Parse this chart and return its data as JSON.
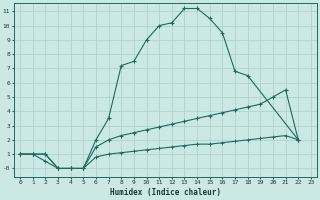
{
  "xlabel": "Humidex (Indice chaleur)",
  "ylabel": "",
  "bg_color": "#cce8e5",
  "grid_color": "#aacfcc",
  "line_color": "#1a6b60",
  "xlim": [
    -0.5,
    23.5
  ],
  "ylim": [
    -0.6,
    11.6
  ],
  "xticks": [
    0,
    1,
    2,
    3,
    4,
    5,
    6,
    7,
    8,
    9,
    10,
    11,
    12,
    13,
    14,
    15,
    16,
    17,
    18,
    19,
    20,
    21,
    22,
    23
  ],
  "yticks": [
    0,
    1,
    2,
    3,
    4,
    5,
    6,
    7,
    8,
    9,
    10,
    11
  ],
  "ytick_labels": [
    "-0",
    "1",
    "2",
    "3",
    "4",
    "5",
    "6",
    "7",
    "8",
    "9",
    "10",
    "11"
  ],
  "curve1_x": [
    0,
    1,
    2,
    3,
    4,
    5,
    6,
    7,
    8,
    9,
    10,
    11,
    12,
    13,
    14,
    15,
    16,
    17,
    18,
    22
  ],
  "curve1_y": [
    1,
    1,
    1,
    0,
    0,
    0,
    2,
    3.5,
    7.2,
    7.5,
    9.0,
    10.0,
    10.2,
    11.2,
    11.2,
    10.5,
    9.5,
    6.8,
    6.5,
    2.0
  ],
  "curve2_x": [
    0,
    1,
    2,
    3,
    4,
    5,
    6,
    7,
    8,
    9,
    10,
    11,
    12,
    13,
    14,
    15,
    16,
    17,
    18,
    19,
    20,
    21,
    22
  ],
  "curve2_y": [
    1,
    1,
    1,
    0,
    0,
    0,
    1.5,
    2.0,
    2.3,
    2.5,
    2.7,
    2.9,
    3.1,
    3.3,
    3.5,
    3.7,
    3.9,
    4.1,
    4.3,
    4.5,
    5.0,
    5.5,
    2.0
  ],
  "curve3_x": [
    0,
    1,
    2,
    3,
    4,
    5,
    6,
    7,
    8,
    9,
    10,
    11,
    12,
    13,
    14,
    15,
    16,
    17,
    18,
    19,
    20,
    21,
    22
  ],
  "curve3_y": [
    1,
    1,
    0.5,
    0,
    0,
    0,
    0.8,
    1.0,
    1.1,
    1.2,
    1.3,
    1.4,
    1.5,
    1.6,
    1.7,
    1.7,
    1.8,
    1.9,
    2.0,
    2.1,
    2.2,
    2.3,
    2.0
  ]
}
